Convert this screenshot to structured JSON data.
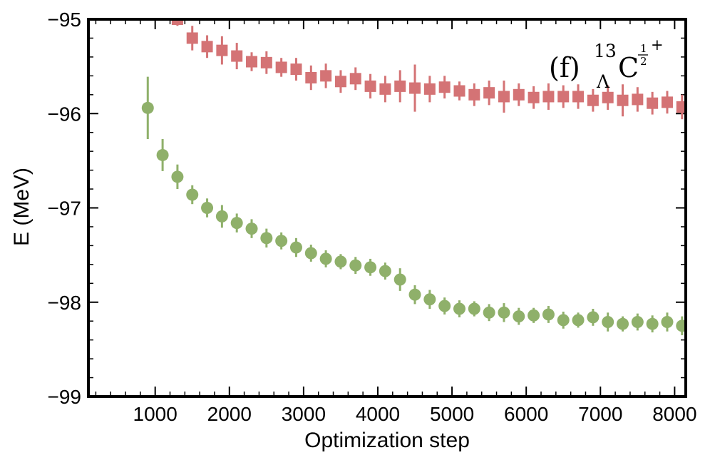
{
  "chart_data": {
    "type": "scatter",
    "title": "",
    "xlabel": "Optimization step",
    "ylabel": "E (MeV)",
    "xlim": [
      100,
      8150
    ],
    "ylim": [
      -99,
      -95
    ],
    "xticks": [
      1000,
      2000,
      3000,
      4000,
      5000,
      6000,
      7000,
      8000
    ],
    "xtick_labels": [
      "1000",
      "2000",
      "3000",
      "4000",
      "5000",
      "6000",
      "7000",
      "8000"
    ],
    "yticks": [
      -99,
      -98,
      -97,
      -96,
      -95
    ],
    "ytick_labels": [
      "−99",
      "−98",
      "−97",
      "−96",
      "−95"
    ],
    "grid": false,
    "annotation": {
      "label": "(f)",
      "mass_number": "13",
      "hyperon": "Λ",
      "element": "C",
      "spin_num": "1",
      "spin_den": "2",
      "parity": "+"
    },
    "series": [
      {
        "name": "square-series",
        "marker": "square",
        "color": "#d47375",
        "x": [
          1300,
          1500,
          1700,
          1900,
          2100,
          2300,
          2500,
          2700,
          2900,
          3100,
          3300,
          3500,
          3700,
          3900,
          4100,
          4300,
          4500,
          4700,
          4900,
          5100,
          5300,
          5500,
          5700,
          5900,
          6100,
          6300,
          6500,
          6700,
          6900,
          7100,
          7300,
          7500,
          7700,
          7900,
          8100
        ],
        "y": [
          -95.0,
          -95.2,
          -95.29,
          -95.33,
          -95.39,
          -95.45,
          -95.46,
          -95.51,
          -95.53,
          -95.62,
          -95.6,
          -95.66,
          -95.63,
          -95.71,
          -95.74,
          -95.71,
          -95.73,
          -95.74,
          -95.72,
          -95.76,
          -95.8,
          -95.78,
          -95.82,
          -95.8,
          -95.83,
          -95.82,
          -95.82,
          -95.82,
          -95.86,
          -95.83,
          -95.86,
          -95.85,
          -95.89,
          -95.88,
          -95.93
        ],
        "err": [
          0.07,
          0.13,
          0.12,
          0.15,
          0.14,
          0.1,
          0.12,
          0.1,
          0.12,
          0.13,
          0.13,
          0.12,
          0.12,
          0.13,
          0.14,
          0.17,
          0.25,
          0.14,
          0.12,
          0.1,
          0.12,
          0.13,
          0.17,
          0.12,
          0.12,
          0.14,
          0.12,
          0.13,
          0.12,
          0.13,
          0.17,
          0.13,
          0.12,
          0.12,
          0.13
        ]
      },
      {
        "name": "circle-series",
        "marker": "circle",
        "color": "#8fb06a",
        "x": [
          900,
          1100,
          1300,
          1500,
          1700,
          1900,
          2100,
          2300,
          2500,
          2700,
          2900,
          3100,
          3300,
          3500,
          3700,
          3900,
          4100,
          4300,
          4500,
          4700,
          4900,
          5100,
          5300,
          5500,
          5700,
          5900,
          6100,
          6300,
          6500,
          6700,
          6900,
          7100,
          7300,
          7500,
          7700,
          7900,
          8100
        ],
        "y": [
          -95.94,
          -96.44,
          -96.67,
          -96.86,
          -97.0,
          -97.09,
          -97.16,
          -97.22,
          -97.32,
          -97.35,
          -97.42,
          -97.48,
          -97.54,
          -97.57,
          -97.61,
          -97.63,
          -97.67,
          -97.76,
          -97.92,
          -97.97,
          -98.04,
          -98.07,
          -98.07,
          -98.11,
          -98.11,
          -98.15,
          -98.14,
          -98.13,
          -98.19,
          -98.19,
          -98.16,
          -98.21,
          -98.23,
          -98.21,
          -98.23,
          -98.21,
          -98.25
        ],
        "err": [
          0.33,
          0.17,
          0.13,
          0.1,
          0.1,
          0.12,
          0.1,
          0.1,
          0.1,
          0.09,
          0.1,
          0.09,
          0.09,
          0.08,
          0.09,
          0.09,
          0.09,
          0.12,
          0.1,
          0.1,
          0.09,
          0.09,
          0.08,
          0.09,
          0.1,
          0.09,
          0.08,
          0.09,
          0.09,
          0.08,
          0.09,
          0.1,
          0.08,
          0.09,
          0.09,
          0.1,
          0.1
        ]
      }
    ]
  }
}
